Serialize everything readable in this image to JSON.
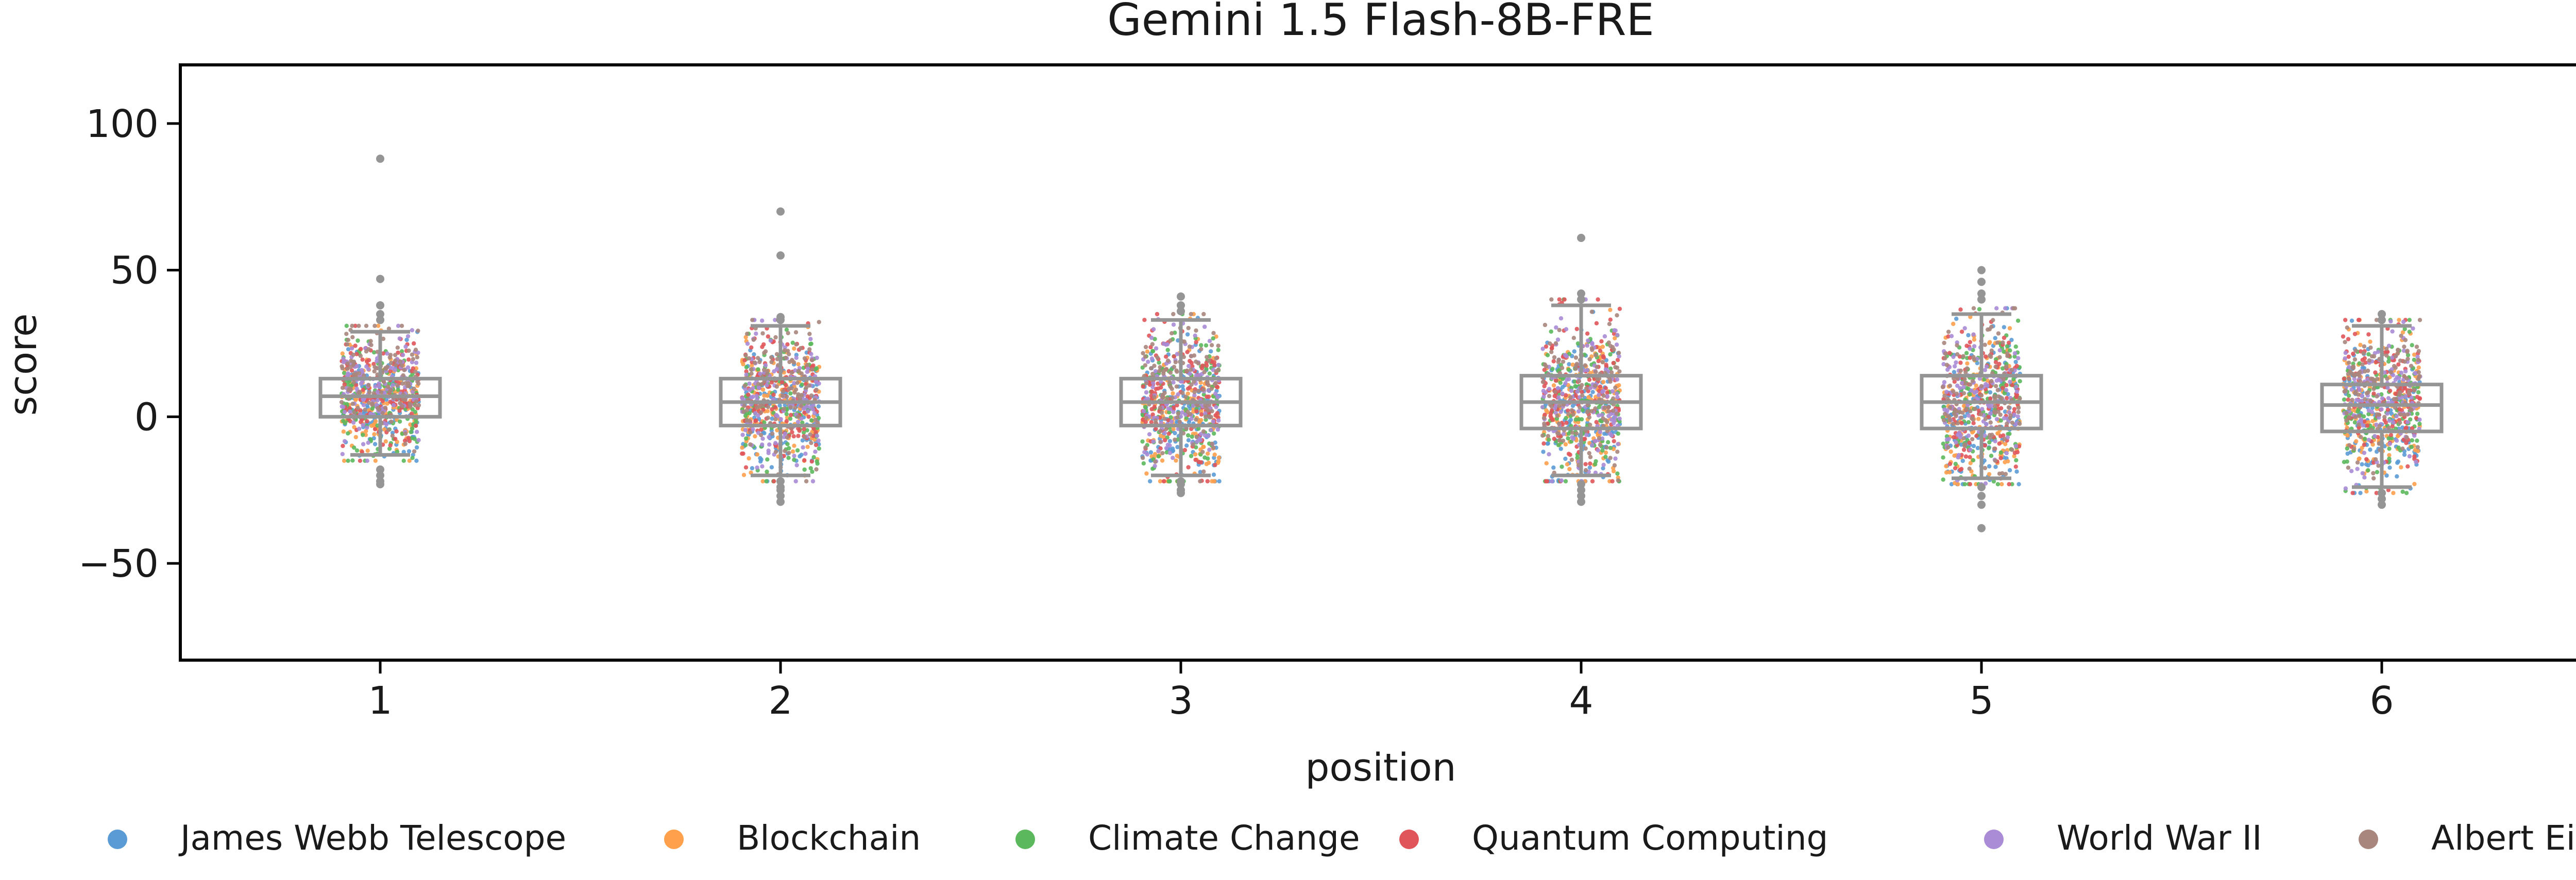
{
  "chart_data": {
    "type": "scatter",
    "title": "Gemini 1.5 Flash-8B-FRE",
    "xlabel": "position",
    "ylabel": "score",
    "ylim": [
      -83,
      120
    ],
    "yticks": [
      100,
      50,
      0,
      -50
    ],
    "ytick_labels": [
      "100",
      "50",
      "0",
      "−50"
    ],
    "categories": [
      "1",
      "2",
      "3",
      "4",
      "5",
      "6"
    ],
    "grid": false,
    "legend_position": "bottom",
    "series": [
      {
        "name": "James Webb Telescope",
        "color": "#5b9bd5"
      },
      {
        "name": "Blockchain",
        "color": "#ffa04d"
      },
      {
        "name": "Climate Change",
        "color": "#5cb85c"
      },
      {
        "name": "Quantum Computing",
        "color": "#e0555a"
      },
      {
        "name": "World War II",
        "color": "#a98bd6"
      },
      {
        "name": "Albert Einstein",
        "color": "#a9867d"
      }
    ],
    "boxes": [
      {
        "position": "1",
        "q1": 0,
        "median": 7,
        "q3": 13,
        "whisker_low": -13,
        "whisker_high": 29,
        "outliers": [
          88,
          47,
          38,
          35,
          33,
          -18,
          -20,
          -22,
          -23
        ]
      },
      {
        "position": "2",
        "q1": -3,
        "median": 5,
        "q3": 13,
        "whisker_low": -20,
        "whisker_high": 31,
        "outliers": [
          70,
          55,
          34,
          33,
          -22,
          -24,
          -25,
          -27,
          -29
        ]
      },
      {
        "position": "3",
        "q1": -3,
        "median": 5,
        "q3": 13,
        "whisker_low": -20,
        "whisker_high": 33,
        "outliers": [
          41,
          38,
          36,
          -22,
          -23,
          -25,
          -26
        ]
      },
      {
        "position": "4",
        "q1": -4,
        "median": 5,
        "q3": 14,
        "whisker_low": -20,
        "whisker_high": 38,
        "outliers": [
          61,
          42,
          40,
          -23,
          -25,
          -27,
          -29
        ]
      },
      {
        "position": "5",
        "q1": -4,
        "median": 5,
        "q3": 14,
        "whisker_low": -21,
        "whisker_high": 35,
        "outliers": [
          50,
          46,
          42,
          40,
          -24,
          -27,
          -30,
          -38
        ]
      },
      {
        "position": "6",
        "q1": -5,
        "median": 4,
        "q3": 11,
        "whisker_low": -24,
        "whisker_high": 31,
        "outliers": [
          35,
          33,
          -26,
          -28,
          -30
        ]
      }
    ],
    "points_per_series_per_position": 130
  }
}
